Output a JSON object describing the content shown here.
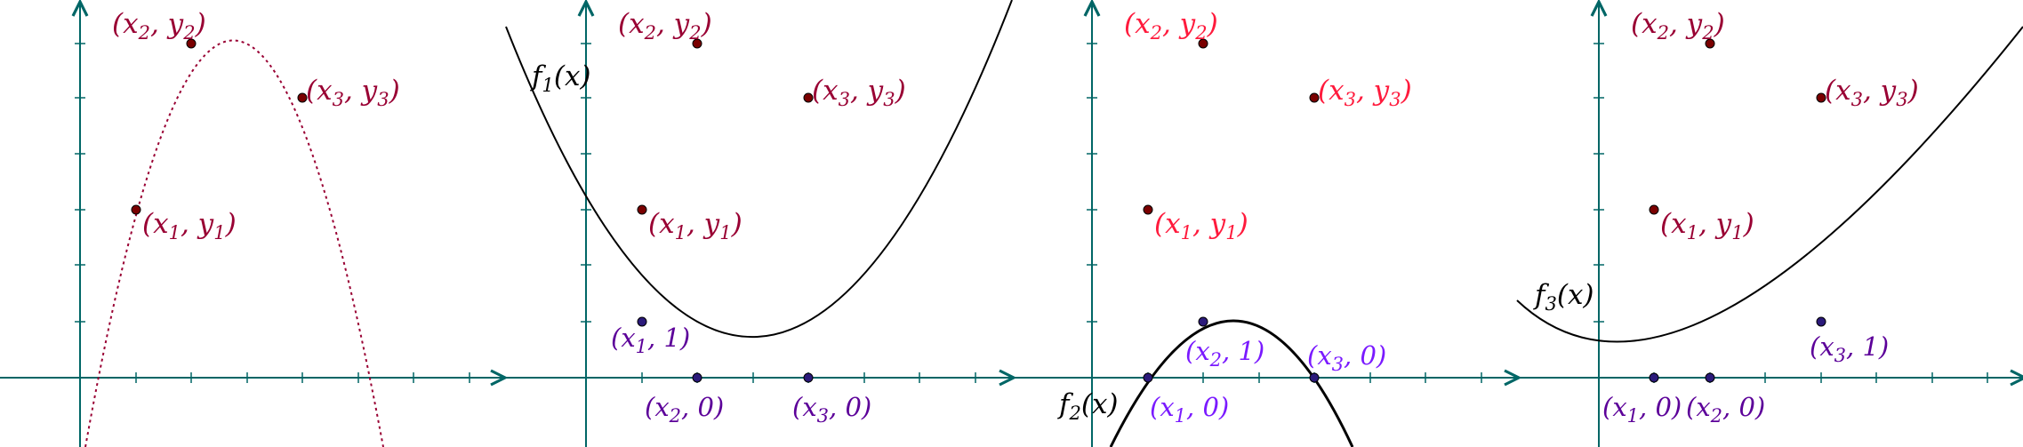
{
  "colors": {
    "axis": "#006666",
    "point_label": "#990033",
    "point_label_alt": "#ff1a3c",
    "purple": "#5c0099",
    "purple_alt": "#7a1aff",
    "curve": "#000000",
    "dotted": "#990033",
    "point_fill_red": "#7a0000",
    "point_fill_blue": "#2b1a7a"
  },
  "panels": [
    {
      "curve_label": {
        "base": "",
        "sub": "",
        "arg": ""
      },
      "points": [
        {
          "kind": "given",
          "base": "(x",
          "sub": "1",
          "mid": ", y",
          "sub2": "1",
          "end": ")"
        },
        {
          "kind": "given",
          "base": "(x",
          "sub": "2",
          "mid": ", y",
          "sub2": "2",
          "end": ")"
        },
        {
          "kind": "given",
          "base": "(x",
          "sub": "3",
          "mid": ", y",
          "sub2": "3",
          "end": ")"
        }
      ]
    },
    {
      "curve_label": {
        "base": "f",
        "sub": "1",
        "arg": "(x)"
      },
      "points": [
        {
          "kind": "given",
          "base": "(x",
          "sub": "1",
          "mid": ", y",
          "sub2": "1",
          "end": ")"
        },
        {
          "kind": "given",
          "base": "(x",
          "sub": "2",
          "mid": ", y",
          "sub2": "2",
          "end": ")"
        },
        {
          "kind": "given",
          "base": "(x",
          "sub": "3",
          "mid": ", y",
          "sub2": "3",
          "end": ")"
        },
        {
          "kind": "basis",
          "base": "(x",
          "sub": "1",
          "mid": ", 1)",
          "sub2": "",
          "end": ""
        },
        {
          "kind": "basis",
          "base": "(x",
          "sub": "2",
          "mid": ", 0)",
          "sub2": "",
          "end": ""
        },
        {
          "kind": "basis",
          "base": "(x",
          "sub": "3",
          "mid": ", 0)",
          "sub2": "",
          "end": ""
        }
      ]
    },
    {
      "curve_label": {
        "base": "f",
        "sub": "2",
        "arg": "(x)"
      },
      "points": [
        {
          "kind": "given",
          "base": "(x",
          "sub": "1",
          "mid": ", y",
          "sub2": "1",
          "end": ")"
        },
        {
          "kind": "given",
          "base": "(x",
          "sub": "2",
          "mid": ", y",
          "sub2": "2",
          "end": ")"
        },
        {
          "kind": "given",
          "base": "(x",
          "sub": "3",
          "mid": ", y",
          "sub2": "3",
          "end": ")"
        },
        {
          "kind": "basis",
          "base": "(x",
          "sub": "1",
          "mid": ", 0)",
          "sub2": "",
          "end": ""
        },
        {
          "kind": "basis",
          "base": "(x",
          "sub": "2",
          "mid": ", 1)",
          "sub2": "",
          "end": ""
        },
        {
          "kind": "basis",
          "base": "(x",
          "sub": "3",
          "mid": ", 0)",
          "sub2": "",
          "end": ""
        }
      ]
    },
    {
      "curve_label": {
        "base": "f",
        "sub": "3",
        "arg": "(x)"
      },
      "points": [
        {
          "kind": "given",
          "base": "(x",
          "sub": "1",
          "mid": ", y",
          "sub2": "1",
          "end": ")"
        },
        {
          "kind": "given",
          "base": "(x",
          "sub": "2",
          "mid": ", y",
          "sub2": "2",
          "end": ")"
        },
        {
          "kind": "given",
          "base": "(x",
          "sub": "3",
          "mid": ", y",
          "sub2": "3",
          "end": ")"
        },
        {
          "kind": "basis",
          "base": "(x",
          "sub": "1",
          "mid": ", 0)",
          "sub2": "",
          "end": ""
        },
        {
          "kind": "basis",
          "base": "(x",
          "sub": "2",
          "mid": ", 0)",
          "sub2": "",
          "end": ""
        },
        {
          "kind": "basis",
          "base": "(x",
          "sub": "3",
          "mid": ", 1)",
          "sub2": "",
          "end": ""
        }
      ]
    }
  ]
}
